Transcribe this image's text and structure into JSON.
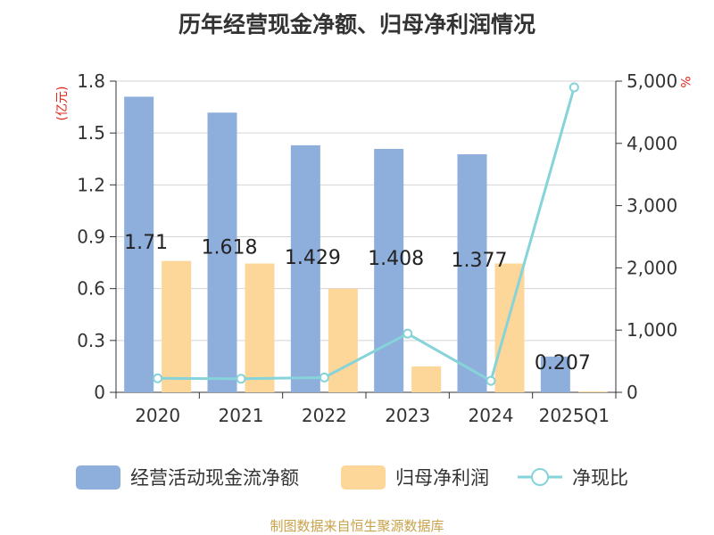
{
  "chart_data": {
    "type": "bar",
    "title": "历年经营现金净额、归母净利润情况",
    "categories": [
      "2020",
      "2021",
      "2022",
      "2023",
      "2024",
      "2025Q1"
    ],
    "series": [
      {
        "name": "经营活动现金流净额",
        "type": "bar",
        "axis": "left",
        "color": "#8eaedc",
        "values": [
          1.71,
          1.618,
          1.429,
          1.408,
          1.377,
          0.207
        ]
      },
      {
        "name": "归母净利润",
        "type": "bar",
        "axis": "left",
        "color": "#fdd699",
        "values": [
          0.76,
          0.745,
          0.6,
          0.15,
          0.745,
          0.005
        ]
      },
      {
        "name": "净现比",
        "type": "line",
        "axis": "right",
        "color": "#86d3d9",
        "values": [
          225,
          218,
          238,
          943,
          185,
          4900
        ]
      }
    ],
    "data_labels": [
      "1.71",
      "1.618",
      "1.429",
      "1.408",
      "1.377",
      "0.207"
    ],
    "left_axis": {
      "unit": "(亿元)",
      "ylim": [
        0,
        1.8
      ],
      "ticks": [
        "0",
        "0.3",
        "0.6",
        "0.9",
        "1.2",
        "1.5",
        "1.8"
      ]
    },
    "right_axis": {
      "unit": "%",
      "ylim": [
        0,
        5000
      ],
      "ticks": [
        "0",
        "1,000",
        "2,000",
        "3,000",
        "4,000",
        "5,000"
      ]
    },
    "grid": true,
    "legend_position": "bottom"
  },
  "source_note": "制图数据来自恒生聚源数据库"
}
